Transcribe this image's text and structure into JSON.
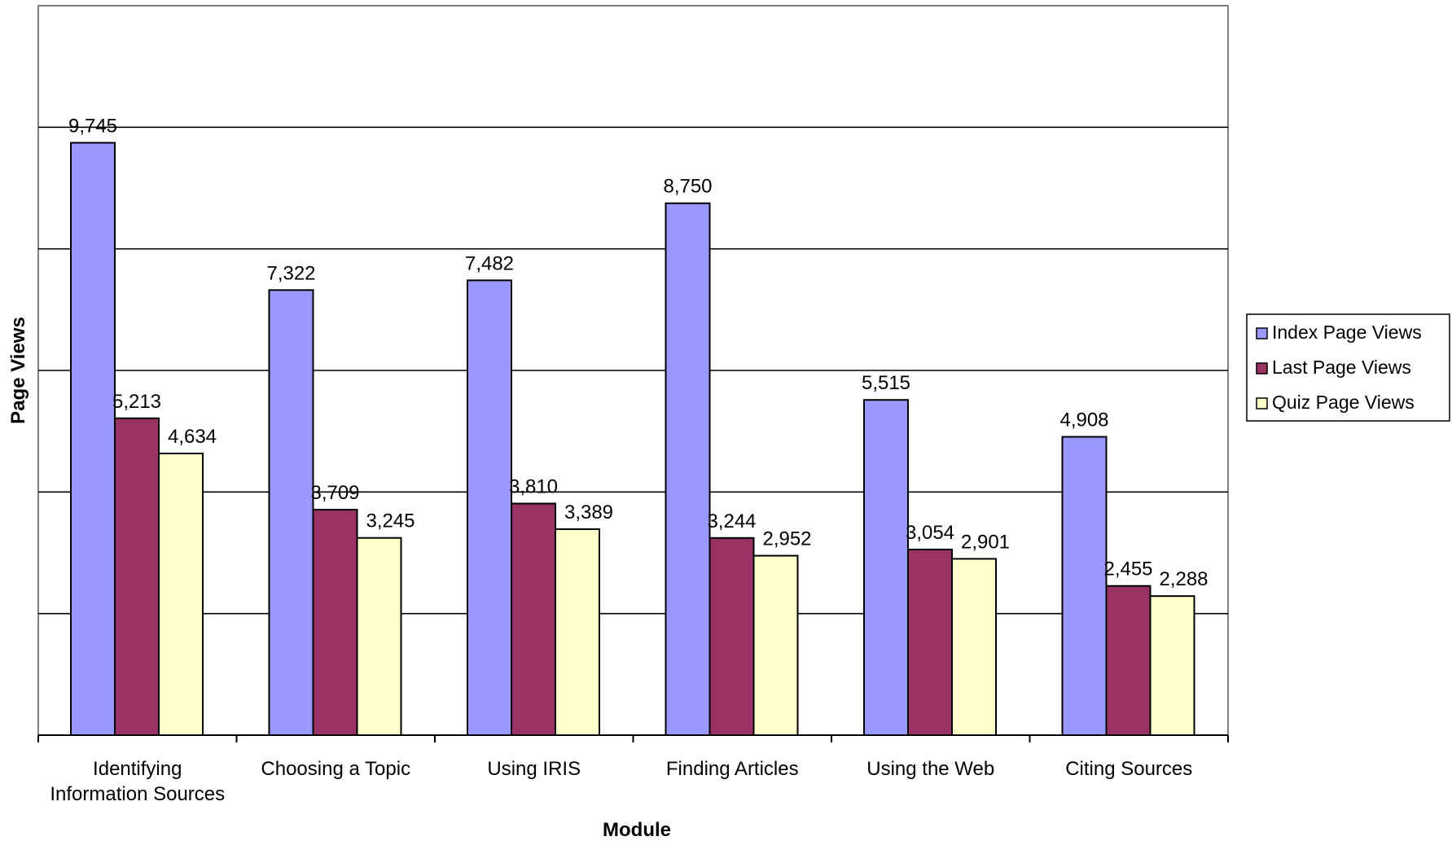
{
  "chart_data": {
    "type": "bar",
    "title": "",
    "xlabel": "Module",
    "ylabel": "Page Views",
    "ylim": [
      0,
      12000
    ],
    "grid": true,
    "legend_position": "right",
    "categories": [
      [
        "Identifying",
        "Information Sources"
      ],
      [
        "Choosing a Topic"
      ],
      [
        "Using IRIS"
      ],
      [
        "Finding Articles"
      ],
      [
        "Using the Web"
      ],
      [
        "Citing Sources"
      ]
    ],
    "series": [
      {
        "name": "Index Page Views",
        "color": "#9999FF",
        "values": [
          9745,
          7322,
          7482,
          8750,
          5515,
          4908
        ],
        "labels": [
          "9,745",
          "7,322",
          "7,482",
          "8,750",
          "5,515",
          "4,908"
        ]
      },
      {
        "name": "Last Page Views",
        "color": "#993366",
        "values": [
          5213,
          3709,
          3810,
          3244,
          3054,
          2455
        ],
        "labels": [
          "5,213",
          "3,709",
          "3,810",
          "3,244",
          "3,054",
          "2,455"
        ]
      },
      {
        "name": "Quiz Page Views",
        "color": "#FFFFCC",
        "values": [
          4634,
          3245,
          3389,
          2952,
          2901,
          2288
        ],
        "labels": [
          "4,634",
          "3,245",
          "3,389",
          "2,952",
          "2,901",
          "2,288"
        ]
      }
    ]
  }
}
